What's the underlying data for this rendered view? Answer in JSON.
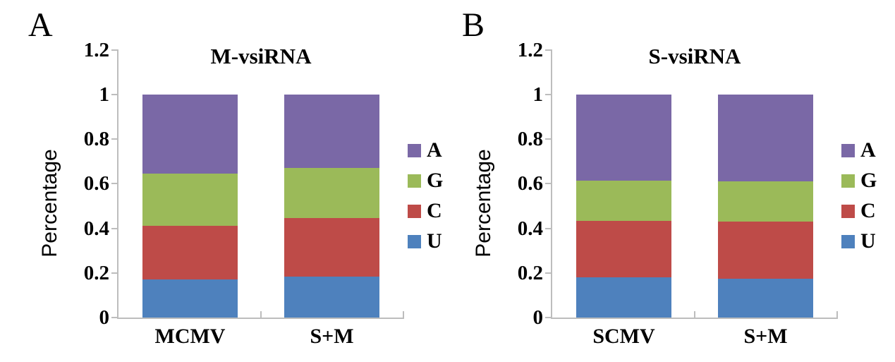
{
  "figure": {
    "background": "#FFFFFF",
    "axis_color": "#BDBDBD",
    "text_color": "#000000"
  },
  "legend": {
    "position": "right",
    "entries": [
      {
        "label": "A",
        "color": "#7A68A6"
      },
      {
        "label": "G",
        "color": "#9BBA59"
      },
      {
        "label": "C",
        "color": "#BE4B48"
      },
      {
        "label": "U",
        "color": "#4E81BD"
      }
    ]
  },
  "chart_data": [
    {
      "type": "bar",
      "stacked": true,
      "panel_label": "A",
      "title": "M-vsiRNA",
      "xlabel": "",
      "ylabel": "Percentage",
      "ylim": [
        0,
        1.2
      ],
      "yticks": [
        "0",
        "0.2",
        "0.4",
        "0.6",
        "0.8",
        "1",
        "1.2"
      ],
      "grid": false,
      "legend_position": "right",
      "categories": [
        "MCMV",
        "S+M"
      ],
      "series": [
        {
          "name": "U",
          "color": "#4E81BD",
          "values": [
            0.17,
            0.185
          ]
        },
        {
          "name": "C",
          "color": "#BE4B48",
          "values": [
            0.24,
            0.26
          ]
        },
        {
          "name": "G",
          "color": "#9BBA59",
          "values": [
            0.235,
            0.225
          ]
        },
        {
          "name": "A",
          "color": "#7A68A6",
          "values": [
            0.355,
            0.33
          ]
        }
      ]
    },
    {
      "type": "bar",
      "stacked": true,
      "panel_label": "B",
      "title": "S-vsiRNA",
      "xlabel": "",
      "ylabel": "Percentage",
      "ylim": [
        0,
        1.2
      ],
      "yticks": [
        "0",
        "0.2",
        "0.4",
        "0.6",
        "0.8",
        "1",
        "1.2"
      ],
      "grid": false,
      "legend_position": "right",
      "categories": [
        "SCMV",
        "S+M"
      ],
      "series": [
        {
          "name": "U",
          "color": "#4E81BD",
          "values": [
            0.18,
            0.175
          ]
        },
        {
          "name": "C",
          "color": "#BE4B48",
          "values": [
            0.255,
            0.255
          ]
        },
        {
          "name": "G",
          "color": "#9BBA59",
          "values": [
            0.18,
            0.18
          ]
        },
        {
          "name": "A",
          "color": "#7A68A6",
          "values": [
            0.385,
            0.39
          ]
        }
      ]
    }
  ]
}
